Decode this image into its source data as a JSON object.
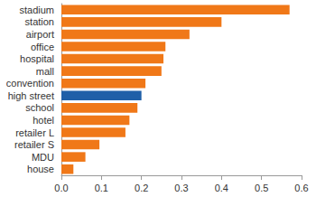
{
  "chart_data": {
    "type": "bar",
    "orientation": "horizontal",
    "categories": [
      "stadium",
      "station",
      "airport",
      "office",
      "hospital",
      "mall",
      "convention",
      "high street",
      "school",
      "hotel",
      "retailer L",
      "retailer S",
      "MDU",
      "house"
    ],
    "values": [
      0.57,
      0.4,
      0.32,
      0.26,
      0.255,
      0.25,
      0.21,
      0.2,
      0.19,
      0.17,
      0.16,
      0.095,
      0.06,
      0.03
    ],
    "colors": [
      "#f07818",
      "#f07818",
      "#f07818",
      "#f07818",
      "#f07818",
      "#f07818",
      "#f07818",
      "#1f5fa8",
      "#f07818",
      "#f07818",
      "#f07818",
      "#f07818",
      "#f07818",
      "#f07818"
    ],
    "xlim": [
      0,
      0.6
    ],
    "xticks": [
      {
        "value": 0,
        "label": "0.0"
      },
      0.1,
      0.2,
      0.3,
      0.4,
      0.5,
      0.6
    ],
    "grid": false
  }
}
